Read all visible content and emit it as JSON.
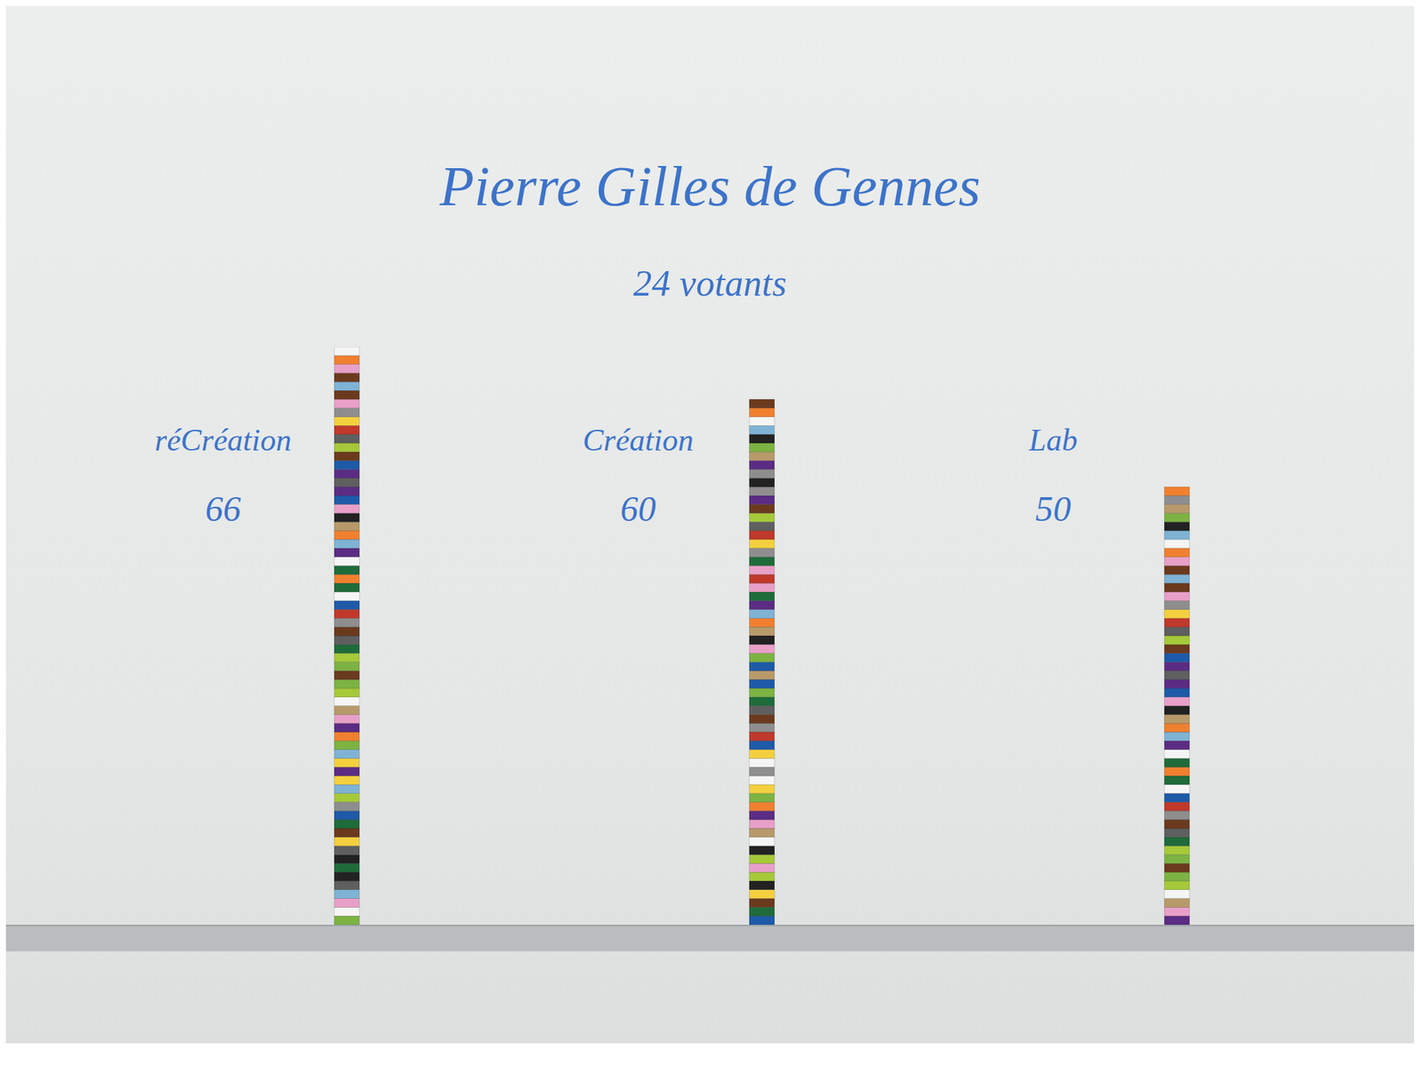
{
  "chart_data": {
    "type": "bar",
    "title": "Pierre Gilles de Gennes",
    "subtitle": "24 votants",
    "categories": [
      "réCréation",
      "Création",
      "Lab"
    ],
    "values": [
      66,
      60,
      50
    ],
    "ylim": [
      0,
      66
    ],
    "data_labels": true,
    "tick_labels": false,
    "grid": false
  }
}
